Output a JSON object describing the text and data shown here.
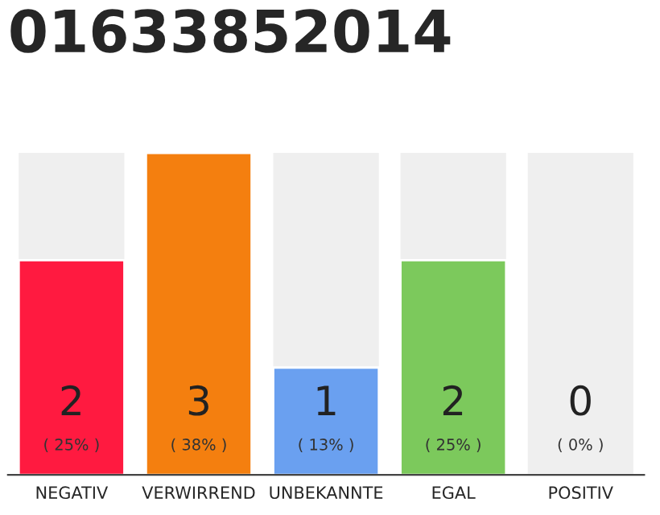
{
  "chart_data": {
    "type": "bar",
    "title": "01633852014",
    "categories": [
      "NEGATIV",
      "VERWIRREND",
      "UNBEKANNTE",
      "EGAL",
      "POSITIV"
    ],
    "values": [
      2,
      3,
      1,
      2,
      0
    ],
    "colors": [
      "#ff1a40",
      "#f47f0f",
      "#6aa0f0",
      "#7cc95c",
      null
    ],
    "value_labels": [
      "2",
      "3",
      "1",
      "2",
      "0"
    ],
    "annotations": [
      "( 25% )",
      "( 38% )",
      "( 13% )",
      "( 25% )",
      "( 0% )"
    ],
    "grid": false,
    "legend": false
  }
}
